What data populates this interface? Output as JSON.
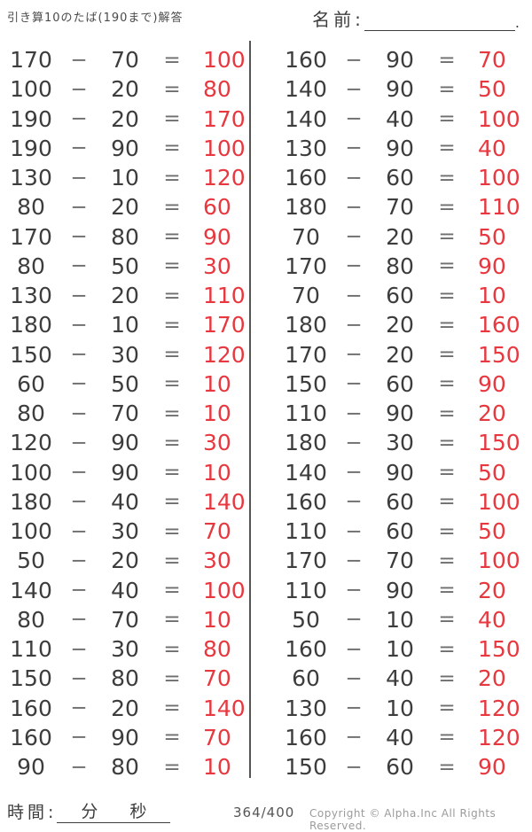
{
  "page": {
    "title": "引き算10のたば(190まで)解答",
    "name_label": "名前:",
    "name_suffix": "."
  },
  "symbols": {
    "minus": "−",
    "equals": "="
  },
  "colors": {
    "text": "#3d3d3d",
    "operator": "#6e6e6e",
    "answer": "#e8383f",
    "muted": "#9b9b9b",
    "divider": "#555555"
  },
  "problems": {
    "left": [
      {
        "minuend": "170",
        "subtrahend": "70",
        "answer": "100"
      },
      {
        "minuend": "100",
        "subtrahend": "20",
        "answer": "80"
      },
      {
        "minuend": "190",
        "subtrahend": "20",
        "answer": "170"
      },
      {
        "minuend": "190",
        "subtrahend": "90",
        "answer": "100"
      },
      {
        "minuend": "130",
        "subtrahend": "10",
        "answer": "120"
      },
      {
        "minuend": "80",
        "subtrahend": "20",
        "answer": "60"
      },
      {
        "minuend": "170",
        "subtrahend": "80",
        "answer": "90"
      },
      {
        "minuend": "80",
        "subtrahend": "50",
        "answer": "30"
      },
      {
        "minuend": "130",
        "subtrahend": "20",
        "answer": "110"
      },
      {
        "minuend": "180",
        "subtrahend": "10",
        "answer": "170"
      },
      {
        "minuend": "150",
        "subtrahend": "30",
        "answer": "120"
      },
      {
        "minuend": "60",
        "subtrahend": "50",
        "answer": "10"
      },
      {
        "minuend": "80",
        "subtrahend": "70",
        "answer": "10"
      },
      {
        "minuend": "120",
        "subtrahend": "90",
        "answer": "30"
      },
      {
        "minuend": "100",
        "subtrahend": "90",
        "answer": "10"
      },
      {
        "minuend": "180",
        "subtrahend": "40",
        "answer": "140"
      },
      {
        "minuend": "100",
        "subtrahend": "30",
        "answer": "70"
      },
      {
        "minuend": "50",
        "subtrahend": "20",
        "answer": "30"
      },
      {
        "minuend": "140",
        "subtrahend": "40",
        "answer": "100"
      },
      {
        "minuend": "80",
        "subtrahend": "70",
        "answer": "10"
      },
      {
        "minuend": "110",
        "subtrahend": "30",
        "answer": "80"
      },
      {
        "minuend": "150",
        "subtrahend": "80",
        "answer": "70"
      },
      {
        "minuend": "160",
        "subtrahend": "20",
        "answer": "140"
      },
      {
        "minuend": "160",
        "subtrahend": "90",
        "answer": "70"
      },
      {
        "minuend": "90",
        "subtrahend": "80",
        "answer": "10"
      }
    ],
    "right": [
      {
        "minuend": "160",
        "subtrahend": "90",
        "answer": "70"
      },
      {
        "minuend": "140",
        "subtrahend": "90",
        "answer": "50"
      },
      {
        "minuend": "140",
        "subtrahend": "40",
        "answer": "100"
      },
      {
        "minuend": "130",
        "subtrahend": "90",
        "answer": "40"
      },
      {
        "minuend": "160",
        "subtrahend": "60",
        "answer": "100"
      },
      {
        "minuend": "180",
        "subtrahend": "70",
        "answer": "110"
      },
      {
        "minuend": "70",
        "subtrahend": "20",
        "answer": "50"
      },
      {
        "minuend": "170",
        "subtrahend": "80",
        "answer": "90"
      },
      {
        "minuend": "70",
        "subtrahend": "60",
        "answer": "10"
      },
      {
        "minuend": "180",
        "subtrahend": "20",
        "answer": "160"
      },
      {
        "minuend": "170",
        "subtrahend": "20",
        "answer": "150"
      },
      {
        "minuend": "150",
        "subtrahend": "60",
        "answer": "90"
      },
      {
        "minuend": "110",
        "subtrahend": "90",
        "answer": "20"
      },
      {
        "minuend": "180",
        "subtrahend": "30",
        "answer": "150"
      },
      {
        "minuend": "140",
        "subtrahend": "90",
        "answer": "50"
      },
      {
        "minuend": "160",
        "subtrahend": "60",
        "answer": "100"
      },
      {
        "minuend": "110",
        "subtrahend": "60",
        "answer": "50"
      },
      {
        "minuend": "170",
        "subtrahend": "70",
        "answer": "100"
      },
      {
        "minuend": "110",
        "subtrahend": "90",
        "answer": "20"
      },
      {
        "minuend": "50",
        "subtrahend": "10",
        "answer": "40"
      },
      {
        "minuend": "160",
        "subtrahend": "10",
        "answer": "150"
      },
      {
        "minuend": "60",
        "subtrahend": "40",
        "answer": "20"
      },
      {
        "minuend": "130",
        "subtrahend": "10",
        "answer": "120"
      },
      {
        "minuend": "160",
        "subtrahend": "40",
        "answer": "120"
      },
      {
        "minuend": "150",
        "subtrahend": "60",
        "answer": "90"
      }
    ]
  },
  "footer": {
    "time_label": "時間:",
    "minutes_label": "分",
    "seconds_label": "秒",
    "page_number": "364/400",
    "copyright": "Copyright ©  Alpha.Inc All Rights Reserved."
  }
}
